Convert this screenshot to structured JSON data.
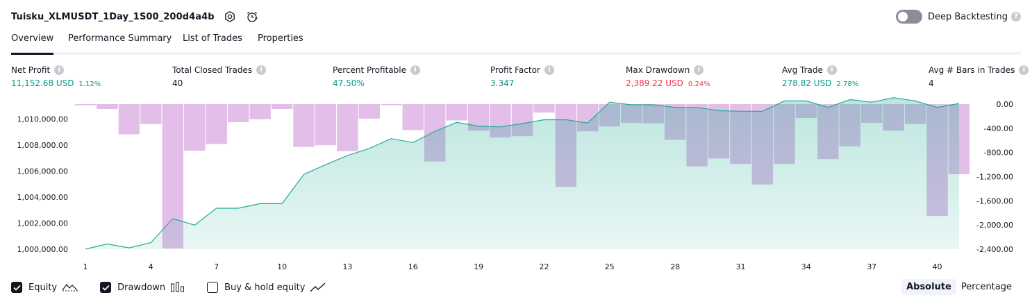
{
  "header": {
    "strategy_name": "Tuisku_XLMUSDT_1Day_1S00_200d4a4b",
    "settings_icon": "gear-icon",
    "alert_icon": "alarm-clock-icon",
    "deep_backtesting_label": "Deep Backtesting",
    "deep_backtesting_enabled": false,
    "help_icon": "question-icon"
  },
  "tabs": [
    {
      "label": "Overview",
      "active": true
    },
    {
      "label": "Performance Summary",
      "active": false
    },
    {
      "label": "List of Trades",
      "active": false
    },
    {
      "label": "Properties",
      "active": false
    }
  ],
  "metrics": [
    {
      "label": "Net Profit",
      "value": "11,152.68 USD",
      "pct": "1.12%",
      "color": "#089981"
    },
    {
      "label": "Total Closed Trades",
      "value": "40",
      "pct": "",
      "color": "#131722"
    },
    {
      "label": "Percent Profitable",
      "value": "47.50%",
      "pct": "",
      "color": "#089981"
    },
    {
      "label": "Profit Factor",
      "value": "3.347",
      "pct": "",
      "color": "#089981"
    },
    {
      "label": "Max Drawdown",
      "value": "2,389.22 USD",
      "pct": "0.24%",
      "color": "#f23645"
    },
    {
      "label": "Avg Trade",
      "value": "278.82 USD",
      "pct": "2.78%",
      "color": "#089981"
    },
    {
      "label": "Avg # Bars in Trades",
      "value": "4",
      "pct": "",
      "color": "#131722"
    }
  ],
  "chart_data": {
    "type": "line",
    "x_ticks": [
      "1",
      "4",
      "7",
      "10",
      "13",
      "16",
      "19",
      "22",
      "25",
      "28",
      "31",
      "34",
      "37",
      "40"
    ],
    "x_range": [
      1,
      41
    ],
    "left_axis": {
      "ticks": [
        "1,010,000.00",
        "1,008,000.00",
        "1,006,000.00",
        "1,004,000.00",
        "1,002,000.00",
        "1,000,000.00"
      ],
      "tick_values": [
        1010000,
        1008000,
        1006000,
        1004000,
        1002000,
        1000000
      ],
      "range": [
        1000000,
        1011152
      ]
    },
    "right_axis": {
      "ticks": [
        "0.00",
        "-400.00",
        "-800.00",
        "-1,200.00",
        "-1,600.00",
        "-2,000.00",
        "-2,400.00"
      ],
      "tick_values": [
        0,
        -400,
        -800,
        -1200,
        -1600,
        -2000,
        -2400
      ],
      "range": [
        -2400,
        0
      ]
    },
    "series": [
      {
        "name": "Equity",
        "kind": "area",
        "color": "#22ab94",
        "x": [
          1,
          2,
          3,
          4,
          5,
          6,
          7,
          8,
          9,
          10,
          11,
          12,
          13,
          14,
          15,
          16,
          17,
          18,
          19,
          20,
          21,
          22,
          23,
          24,
          25,
          26,
          27,
          28,
          29,
          30,
          31,
          32,
          33,
          34,
          35,
          36,
          37,
          38,
          39,
          40,
          41
        ],
        "values": [
          1000000,
          1000400,
          1000100,
          1000500,
          1002350,
          1001850,
          1003150,
          1003150,
          1003500,
          1003500,
          1005750,
          1006500,
          1007200,
          1007750,
          1008500,
          1008200,
          1009050,
          1009750,
          1009450,
          1009400,
          1009650,
          1009950,
          1009950,
          1009700,
          1011300,
          1011100,
          1011100,
          1010900,
          1010900,
          1010650,
          1010600,
          1010600,
          1011400,
          1011400,
          1010900,
          1011500,
          1011300,
          1011650,
          1011400,
          1010900,
          1011200
        ]
      },
      {
        "name": "Drawdown",
        "kind": "bar",
        "color": "#ce93d8",
        "x": [
          1,
          2,
          3,
          4,
          5,
          6,
          7,
          8,
          9,
          10,
          11,
          12,
          13,
          14,
          15,
          16,
          17,
          18,
          19,
          20,
          21,
          22,
          23,
          24,
          25,
          26,
          27,
          28,
          29,
          30,
          31,
          32,
          33,
          34,
          35,
          36,
          37,
          38,
          39,
          40,
          41
        ],
        "values": [
          -20,
          -80,
          -500,
          -330,
          -2389,
          -770,
          -660,
          -300,
          -250,
          -80,
          -710,
          -680,
          -780,
          -240,
          -20,
          -430,
          -950,
          -270,
          -440,
          -550,
          -530,
          -140,
          -1370,
          -450,
          -370,
          -310,
          -320,
          -590,
          -1030,
          -900,
          -990,
          -1330,
          -990,
          -230,
          -910,
          -700,
          -310,
          -440,
          -330,
          -1850,
          -1160
        ]
      }
    ]
  },
  "legend": [
    {
      "label": "Equity",
      "checked": true,
      "icon": "equity-line-icon"
    },
    {
      "label": "Drawdown",
      "checked": true,
      "icon": "bar-chart-icon"
    },
    {
      "label": "Buy & hold equity",
      "checked": false,
      "icon": "line-chart-icon"
    }
  ],
  "modes": [
    {
      "label": "Absolute",
      "active": true
    },
    {
      "label": "Percentage",
      "active": false
    }
  ]
}
